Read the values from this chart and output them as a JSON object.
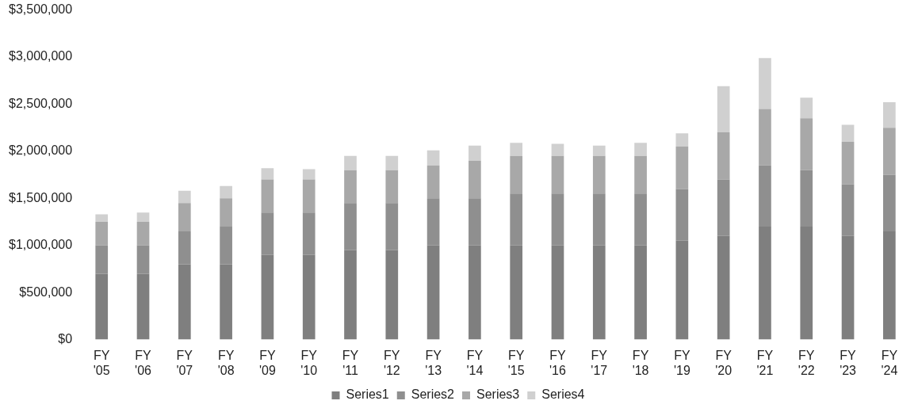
{
  "chart_data": {
    "type": "bar",
    "stacked": true,
    "legend": "bottom",
    "grid": false,
    "categories": [
      "FY '05",
      "FY '06",
      "FY '07",
      "FY '08",
      "FY '09",
      "FY '10",
      "FY '11",
      "FY '12",
      "FY '13",
      "FY '14",
      "FY '15",
      "FY '16",
      "FY '17",
      "FY '18",
      "FY '19",
      "FY '20",
      "FY '21",
      "FY '22",
      "FY '23",
      "FY '24"
    ],
    "series": [
      {
        "name": "Series1",
        "color": "#7f7f7f",
        "values": [
          700000,
          700000,
          800000,
          800000,
          900000,
          900000,
          950000,
          950000,
          1000000,
          1000000,
          1000000,
          1000000,
          1000000,
          1000000,
          1050000,
          1100000,
          1200000,
          1200000,
          1100000,
          1150000
        ]
      },
      {
        "name": "Series2",
        "color": "#8f8f8f",
        "values": [
          300000,
          300000,
          350000,
          400000,
          450000,
          450000,
          500000,
          500000,
          500000,
          500000,
          550000,
          550000,
          550000,
          550000,
          550000,
          600000,
          650000,
          600000,
          550000,
          600000
        ]
      },
      {
        "name": "Series3",
        "color": "#a8a8a8",
        "values": [
          250000,
          250000,
          300000,
          300000,
          350000,
          350000,
          350000,
          350000,
          350000,
          400000,
          400000,
          400000,
          400000,
          400000,
          450000,
          500000,
          600000,
          550000,
          450000,
          500000
        ]
      },
      {
        "name": "Series4",
        "color": "#d0d0d0",
        "values": [
          80000,
          100000,
          130000,
          130000,
          120000,
          110000,
          150000,
          150000,
          160000,
          160000,
          140000,
          130000,
          110000,
          140000,
          140000,
          490000,
          540000,
          220000,
          180000,
          270000
        ]
      }
    ],
    "ylim": [
      0,
      3500000
    ],
    "yticks": [
      {
        "value": 0,
        "label": "$0"
      },
      {
        "value": 500000,
        "label": "$500,000"
      },
      {
        "value": 1000000,
        "label": "$1,000,000"
      },
      {
        "value": 1500000,
        "label": "$1,500,000"
      },
      {
        "value": 2000000,
        "label": "$2,000,000"
      },
      {
        "value": 2500000,
        "label": "$2,500,000"
      },
      {
        "value": 3000000,
        "label": "$3,000,000"
      },
      {
        "value": 3500000,
        "label": "$3,500,000"
      }
    ]
  }
}
